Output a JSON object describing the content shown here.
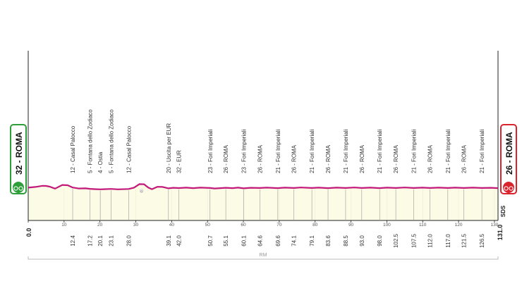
{
  "chart_data": {
    "type": "area",
    "title": "",
    "xlabel": "",
    "ylabel": "",
    "xlim": [
      0,
      131
    ],
    "x_ticks": [
      0,
      10,
      20,
      30,
      40,
      50,
      60,
      70,
      80,
      90,
      100,
      110,
      120,
      130
    ],
    "start": {
      "km": "0.0",
      "label": "32 - ROMA",
      "color": "#2e9e3a"
    },
    "finish": {
      "km": "131.0",
      "label": "26 - ROMA",
      "color": "#d9232d"
    },
    "profile_color": "#c2187a",
    "fill_color": "#fbfbe6",
    "profile": [
      [
        0,
        0.3
      ],
      [
        2,
        0.38
      ],
      [
        4,
        0.52
      ],
      [
        5,
        0.5
      ],
      [
        6,
        0.42
      ],
      [
        7.5,
        0.18
      ],
      [
        8.5,
        0.4
      ],
      [
        9.5,
        0.62
      ],
      [
        11,
        0.58
      ],
      [
        12.4,
        0.32
      ],
      [
        14,
        0.2
      ],
      [
        16,
        0.22
      ],
      [
        17.2,
        0.16
      ],
      [
        19,
        0.12
      ],
      [
        20.1,
        0.1
      ],
      [
        21,
        0.12
      ],
      [
        23.1,
        0.15
      ],
      [
        25,
        0.1
      ],
      [
        28.0,
        0.14
      ],
      [
        29.5,
        0.3
      ],
      [
        31,
        0.72
      ],
      [
        32.3,
        0.7
      ],
      [
        33.5,
        0.3
      ],
      [
        34.5,
        0.12
      ],
      [
        36,
        0.4
      ],
      [
        37.5,
        0.38
      ],
      [
        39.1,
        0.22
      ],
      [
        40.5,
        0.28
      ],
      [
        42.0,
        0.25
      ],
      [
        44,
        0.3
      ],
      [
        46,
        0.24
      ],
      [
        48,
        0.3
      ],
      [
        50.7,
        0.26
      ],
      [
        52,
        0.2
      ],
      [
        55.1,
        0.28
      ],
      [
        57,
        0.24
      ],
      [
        58.5,
        0.3
      ],
      [
        60.1,
        0.22
      ],
      [
        62,
        0.28
      ],
      [
        64.6,
        0.26
      ],
      [
        66.5,
        0.3
      ],
      [
        69.6,
        0.24
      ],
      [
        71.5,
        0.3
      ],
      [
        74.1,
        0.26
      ],
      [
        76,
        0.32
      ],
      [
        79.1,
        0.26
      ],
      [
        81,
        0.3
      ],
      [
        83.6,
        0.24
      ],
      [
        86,
        0.3
      ],
      [
        88.5,
        0.26
      ],
      [
        91,
        0.32
      ],
      [
        93.0,
        0.26
      ],
      [
        95.5,
        0.3
      ],
      [
        98.0,
        0.24
      ],
      [
        100,
        0.3
      ],
      [
        102.5,
        0.26
      ],
      [
        105,
        0.32
      ],
      [
        107.5,
        0.26
      ],
      [
        110,
        0.3
      ],
      [
        112.0,
        0.26
      ],
      [
        114.5,
        0.3
      ],
      [
        117.0,
        0.26
      ],
      [
        119,
        0.3
      ],
      [
        121.5,
        0.26
      ],
      [
        124,
        0.3
      ],
      [
        126.5,
        0.26
      ],
      [
        129,
        0.28
      ],
      [
        131,
        0.24
      ]
    ],
    "points": [
      {
        "km": 12.4,
        "km_label": "12.4",
        "label": "12 - Casal Palocco"
      },
      {
        "km": 17.2,
        "km_label": "17.2",
        "label": "5 - Fontana dello Zodiaco"
      },
      {
        "km": 20.1,
        "km_label": "20.1",
        "label": "4 - Ostia"
      },
      {
        "km": 23.1,
        "km_label": "23.1",
        "label": "5 - Fontana dello Zodiaco"
      },
      {
        "km": 28.0,
        "km_label": "28.0",
        "label": "12 - Casal Palocco"
      },
      {
        "km": 39.1,
        "km_label": "39.1",
        "label": "20 - Uscita per EUR"
      },
      {
        "km": 42.0,
        "km_label": "42.0",
        "label": "32 - EUR"
      },
      {
        "km": 50.7,
        "km_label": "50.7",
        "label": "23 - Fori Imperiali"
      },
      {
        "km": 55.1,
        "km_label": "55.1",
        "label": "26 - ROMA"
      },
      {
        "km": 60.1,
        "km_label": "60.1",
        "label": "23 - Fori Imperiali"
      },
      {
        "km": 64.6,
        "km_label": "64.6",
        "label": "26 - ROMA"
      },
      {
        "km": 69.6,
        "km_label": "69.6",
        "label": "21 - Fori Imperiali"
      },
      {
        "km": 74.1,
        "km_label": "74.1",
        "label": "26 - ROMA"
      },
      {
        "km": 79.1,
        "km_label": "79.1",
        "label": "21 - Fori Imperiali"
      },
      {
        "km": 83.6,
        "km_label": "83.6",
        "label": "26 - ROMA"
      },
      {
        "km": 88.5,
        "km_label": "88.5",
        "label": "21 - Fori Imperiali"
      },
      {
        "km": 93.0,
        "km_label": "93.0",
        "label": "26 - ROMA"
      },
      {
        "km": 98.0,
        "km_label": "98.0",
        "label": "21 - Fori Imperiali"
      },
      {
        "km": 102.5,
        "km_label": "102.5",
        "label": "26 - ROMA"
      },
      {
        "km": 107.5,
        "km_label": "107.5",
        "label": "21 - Fori Imperiali"
      },
      {
        "km": 112.0,
        "km_label": "112.0",
        "label": "26 - ROMA"
      },
      {
        "km": 117.0,
        "km_label": "117.0",
        "label": "21 - Fori Imperiali"
      },
      {
        "km": 121.5,
        "km_label": "121.5",
        "label": "26 - ROMA"
      },
      {
        "km": 126.5,
        "km_label": "126.5",
        "label": "21 - Fori Imperiali"
      }
    ],
    "small_marker_label": "0",
    "sds_label": "SDS",
    "provinces": [
      {
        "label": "RM",
        "from_km": 0,
        "to_km": 131
      }
    ]
  }
}
